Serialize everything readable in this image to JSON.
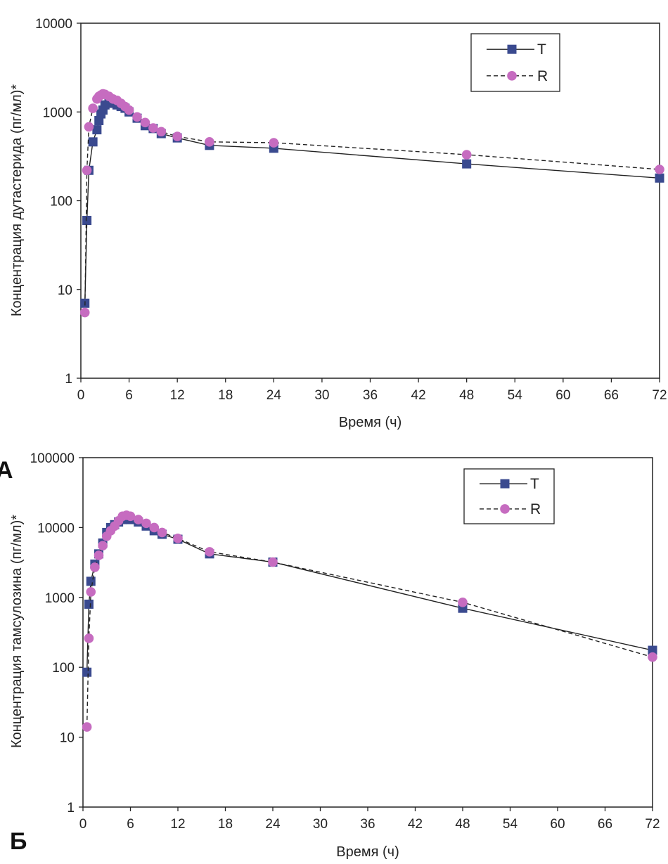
{
  "chart_data": [
    {
      "type": "line",
      "panel_label": "A",
      "xlabel": "Время (ч)",
      "ylabel": "Концентрация дутастерида (пг/мл)*",
      "yscale": "log",
      "xlim": [
        0,
        72
      ],
      "ylim": [
        1,
        10000
      ],
      "x_ticks": [
        "0",
        "6",
        "12",
        "18",
        "24",
        "30",
        "36",
        "42",
        "48",
        "54",
        "60",
        "66",
        "72"
      ],
      "y_ticks": [
        "1",
        "10",
        "100",
        "1000",
        "10000"
      ],
      "legend_position": "top-right",
      "series": [
        {
          "name": "T",
          "line": "solid",
          "marker": "square",
          "color": "#3a4a8f",
          "x": [
            0.5,
            0.75,
            1,
            1.5,
            2,
            2.25,
            2.5,
            2.75,
            3,
            3.5,
            4,
            4.5,
            5,
            5.5,
            6,
            7,
            8,
            9,
            10,
            12,
            16,
            24,
            48,
            72
          ],
          "y": [
            7,
            60,
            220,
            460,
            630,
            800,
            950,
            1050,
            1200,
            1300,
            1250,
            1200,
            1150,
            1100,
            1000,
            850,
            700,
            650,
            570,
            510,
            420,
            390,
            260,
            180
          ]
        },
        {
          "name": "R",
          "line": "dashed",
          "marker": "circle",
          "color": "#c66cc0",
          "x": [
            0.5,
            0.75,
            1,
            1.5,
            2,
            2.25,
            2.5,
            2.75,
            3,
            3.5,
            4,
            4.5,
            5,
            5.5,
            6,
            7,
            8,
            9,
            10,
            12,
            16,
            24,
            48,
            72
          ],
          "y": [
            5.5,
            220,
            680,
            1100,
            1400,
            1500,
            1550,
            1600,
            1580,
            1500,
            1400,
            1350,
            1250,
            1150,
            1050,
            880,
            760,
            660,
            600,
            530,
            460,
            450,
            330,
            225
          ]
        }
      ]
    },
    {
      "type": "line",
      "panel_label": "Б",
      "xlabel": "Время (ч)",
      "ylabel": "Концентрация тамсулозина (пг/мл)*",
      "yscale": "log",
      "xlim": [
        0,
        72
      ],
      "ylim": [
        1,
        100000
      ],
      "x_ticks": [
        "0",
        "6",
        "12",
        "18",
        "24",
        "30",
        "36",
        "42",
        "48",
        "54",
        "60",
        "66",
        "72"
      ],
      "y_ticks": [
        "1",
        "10",
        "100",
        "1000",
        "10000",
        "100000"
      ],
      "legend_position": "top-right",
      "series": [
        {
          "name": "T",
          "line": "solid",
          "marker": "square",
          "color": "#3a4a8f",
          "x": [
            0.5,
            0.75,
            1,
            1.5,
            2,
            2.5,
            3,
            3.5,
            4,
            4.5,
            5,
            5.5,
            6,
            7,
            8,
            9,
            10,
            12,
            16,
            24,
            48,
            72
          ],
          "y": [
            85,
            800,
            1700,
            3000,
            4200,
            6000,
            8500,
            10000,
            11000,
            12000,
            13000,
            13500,
            13000,
            12000,
            10500,
            9000,
            8000,
            6800,
            4200,
            3200,
            700,
            175
          ]
        },
        {
          "name": "R",
          "line": "dashed",
          "marker": "circle",
          "color": "#c66cc0",
          "x": [
            0.5,
            0.75,
            1,
            1.5,
            2,
            2.5,
            3,
            3.5,
            4,
            4.5,
            5,
            5.5,
            6,
            7,
            8,
            9,
            10,
            12,
            16,
            24,
            48,
            72
          ],
          "y": [
            14,
            260,
            1200,
            2700,
            4000,
            5500,
            7500,
            9000,
            10500,
            12500,
            14500,
            15000,
            14500,
            13000,
            11500,
            10000,
            8500,
            7000,
            4500,
            3200,
            850,
            140
          ]
        }
      ]
    }
  ]
}
